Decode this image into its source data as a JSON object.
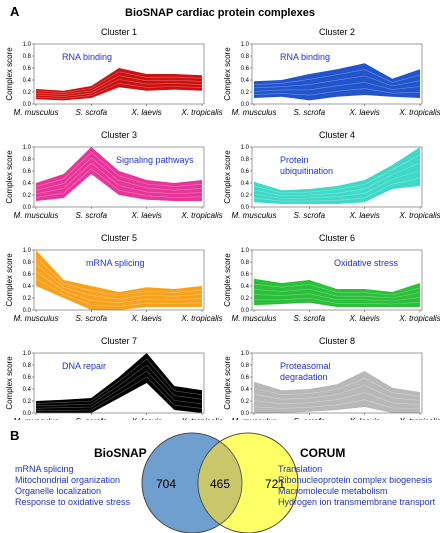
{
  "panels": {
    "a": "A",
    "b": "B"
  },
  "title": "BioSNAP cardiac protein complexes",
  "chart_data": {
    "type": "area",
    "ylabel": "Complex score",
    "ylim": [
      0,
      1.0
    ],
    "yticks": [
      "0.0",
      "0.2",
      "0.4",
      "0.6",
      "0.8",
      "1.0"
    ],
    "categories": [
      "M. musculus",
      "S. scrofa",
      "X. laevis",
      "X. tropicalis"
    ],
    "clusters": [
      {
        "title": "Cluster 1",
        "annotation": [
          "RNA binding"
        ],
        "color": "#cc1111",
        "annotation_pos": "top-left",
        "x": [
          0,
          0.5,
          1,
          1.5,
          2,
          2.5,
          3
        ],
        "low": [
          0.08,
          0.06,
          0.1,
          0.28,
          0.22,
          0.24,
          0.22
        ],
        "high": [
          0.25,
          0.22,
          0.3,
          0.6,
          0.5,
          0.5,
          0.48
        ],
        "mean": [
          0.16,
          0.14,
          0.2,
          0.45,
          0.36,
          0.38,
          0.36
        ]
      },
      {
        "title": "Cluster 2",
        "annotation": [
          "RNA binding"
        ],
        "color": "#2255cc",
        "annotation_pos": "top-left",
        "x": [
          0,
          0.5,
          1,
          1.5,
          2,
          2.5,
          3
        ],
        "low": [
          0.1,
          0.12,
          0.06,
          0.12,
          0.15,
          0.12,
          0.1
        ],
        "high": [
          0.38,
          0.4,
          0.5,
          0.58,
          0.68,
          0.42,
          0.58
        ],
        "mean": [
          0.25,
          0.26,
          0.28,
          0.36,
          0.42,
          0.27,
          0.34
        ]
      },
      {
        "title": "Cluster 3",
        "annotation": [
          "Signaling pathways"
        ],
        "color": "#e8359a",
        "annotation_pos": "top-right",
        "x": [
          0,
          0.5,
          1,
          1.5,
          2,
          2.5,
          3
        ],
        "low": [
          0.1,
          0.15,
          0.55,
          0.2,
          0.12,
          0.1,
          0.1
        ],
        "high": [
          0.4,
          0.55,
          1.0,
          0.6,
          0.45,
          0.4,
          0.45
        ],
        "mean": [
          0.25,
          0.35,
          0.78,
          0.4,
          0.28,
          0.25,
          0.27
        ]
      },
      {
        "title": "Cluster 4",
        "annotation": [
          "Protein",
          "ubiquitination"
        ],
        "color": "#3fd9c8",
        "annotation_pos": "top-left",
        "x": [
          0,
          0.5,
          1,
          1.5,
          2,
          2.5,
          3
        ],
        "low": [
          0.08,
          0.05,
          0.05,
          0.05,
          0.08,
          0.3,
          0.35
        ],
        "high": [
          0.42,
          0.28,
          0.3,
          0.35,
          0.45,
          0.7,
          1.0
        ],
        "mean": [
          0.25,
          0.16,
          0.17,
          0.2,
          0.26,
          0.5,
          0.68
        ]
      },
      {
        "title": "Cluster 5",
        "annotation": [
          "mRNA splicing"
        ],
        "color": "#f7a21e",
        "annotation_pos": "top-center",
        "x": [
          0,
          0.5,
          1,
          1.5,
          2,
          2.5,
          3
        ],
        "low": [
          0.4,
          0.2,
          0.0,
          0.0,
          0.05,
          0.05,
          0.05
        ],
        "high": [
          1.0,
          0.5,
          0.4,
          0.3,
          0.38,
          0.35,
          0.4
        ],
        "mean": [
          0.7,
          0.35,
          0.2,
          0.15,
          0.22,
          0.2,
          0.22
        ]
      },
      {
        "title": "Cluster 6",
        "annotation": [
          "Oxidative stress"
        ],
        "color": "#2bbf3a",
        "annotation_pos": "top-right",
        "x": [
          0,
          0.5,
          1,
          1.5,
          2,
          2.5,
          3
        ],
        "low": [
          0.08,
          0.1,
          0.12,
          0.05,
          0.05,
          0.05,
          0.05
        ],
        "high": [
          0.52,
          0.45,
          0.5,
          0.35,
          0.35,
          0.3,
          0.45
        ],
        "mean": [
          0.3,
          0.28,
          0.31,
          0.2,
          0.2,
          0.18,
          0.25
        ]
      },
      {
        "title": "Cluster 7",
        "annotation": [
          "DNA repair"
        ],
        "color": "#000000",
        "annotation_pos": "top-left",
        "x": [
          0,
          0.5,
          1,
          1.5,
          2,
          2.5,
          3
        ],
        "low": [
          0.0,
          0.0,
          0.0,
          0.25,
          0.5,
          0.05,
          0.0
        ],
        "high": [
          0.2,
          0.22,
          0.25,
          0.6,
          1.0,
          0.45,
          0.38
        ],
        "mean": [
          0.1,
          0.11,
          0.13,
          0.42,
          0.75,
          0.25,
          0.19
        ]
      },
      {
        "title": "Cluster 8",
        "annotation": [
          "Proteasomal",
          "degradation"
        ],
        "color": "#b8b8b8",
        "annotation_pos": "top-left",
        "x": [
          0,
          0.5,
          1,
          1.5,
          2,
          2.5,
          3
        ],
        "low": [
          0.0,
          0.0,
          0.02,
          0.05,
          0.1,
          0.0,
          0.0
        ],
        "high": [
          0.52,
          0.38,
          0.4,
          0.48,
          0.7,
          0.42,
          0.35
        ],
        "mean": [
          0.26,
          0.19,
          0.21,
          0.26,
          0.4,
          0.21,
          0.17
        ]
      }
    ]
  },
  "venn": {
    "left_label": "BioSNAP",
    "right_label": "CORUM",
    "left_only": "704",
    "overlap": "465",
    "right_only": "721",
    "left_color": "#6f9fcf",
    "right_color": "#ffff66",
    "overlap_color": "#c8c86a",
    "left_terms": [
      "mRNA splicing",
      "Mitochondrial organization",
      "Organelle localization",
      "Response to oxidative stress"
    ],
    "right_terms": [
      "Translation",
      "Ribonucleoprotein complex biogenesis",
      "Macromolecule metabolism",
      "Hydrogen ion transmembrane transport"
    ]
  }
}
